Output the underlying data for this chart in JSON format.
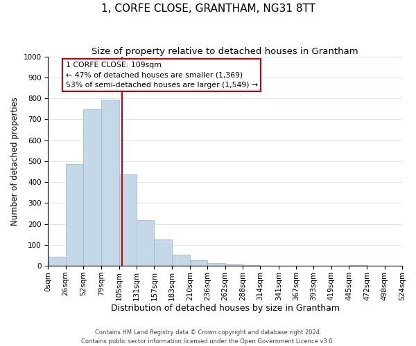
{
  "title": "1, CORFE CLOSE, GRANTHAM, NG31 8TT",
  "subtitle": "Size of property relative to detached houses in Grantham",
  "xlabel": "Distribution of detached houses by size in Grantham",
  "ylabel": "Number of detached properties",
  "bar_edges": [
    0,
    26,
    52,
    79,
    105,
    131,
    157,
    183,
    210,
    236,
    262,
    288,
    314,
    341,
    367,
    393,
    419,
    445,
    472,
    498,
    524
  ],
  "bar_heights": [
    42,
    485,
    748,
    795,
    437,
    220,
    125,
    52,
    28,
    15,
    8,
    3,
    2,
    1,
    0,
    0,
    0,
    5,
    0,
    0
  ],
  "bar_color": "#c5d8e8",
  "bar_edgecolor": "#a0bcd4",
  "property_line_x": 109,
  "ylim": [
    0,
    1000
  ],
  "yticks": [
    0,
    100,
    200,
    300,
    400,
    500,
    600,
    700,
    800,
    900,
    1000
  ],
  "x_tick_labels": [
    "0sqm",
    "26sqm",
    "52sqm",
    "79sqm",
    "105sqm",
    "131sqm",
    "157sqm",
    "183sqm",
    "210sqm",
    "236sqm",
    "262sqm",
    "288sqm",
    "314sqm",
    "341sqm",
    "367sqm",
    "393sqm",
    "419sqm",
    "445sqm",
    "472sqm",
    "498sqm",
    "524sqm"
  ],
  "annotation_line1": "1 CORFE CLOSE: 109sqm",
  "annotation_line2": "← 47% of detached houses are smaller (1,369)",
  "annotation_line3": "53% of semi-detached houses are larger (1,549) →",
  "footer_line1": "Contains HM Land Registry data © Crown copyright and database right 2024.",
  "footer_line2": "Contains public sector information licensed under the Open Government Licence v3.0.",
  "grid_color": "#dce8f0",
  "line_color": "#cc0000",
  "box_edge_color": "#cc0000",
  "title_fontsize": 11,
  "subtitle_fontsize": 9.5,
  "tick_fontsize": 7.5,
  "xlabel_fontsize": 9,
  "ylabel_fontsize": 8.5,
  "footer_fontsize": 6.0
}
